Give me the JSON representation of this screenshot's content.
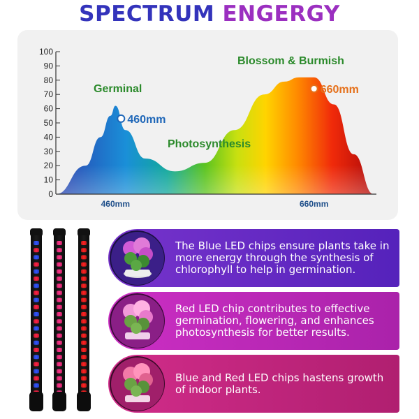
{
  "title": {
    "part1": "SPECTRUM ",
    "part2": "ENGERGY",
    "color1": "#3333bb",
    "color2": "#9b2fc0"
  },
  "chart_data": {
    "type": "area",
    "x": [
      400,
      430,
      445,
      455,
      460,
      470,
      490,
      520,
      550,
      580,
      610,
      630,
      645,
      660,
      680,
      700,
      720
    ],
    "y": [
      0,
      20,
      40,
      55,
      62,
      45,
      25,
      16,
      22,
      45,
      70,
      79,
      82,
      82,
      63,
      28,
      0
    ],
    "xlim": [
      400,
      720
    ],
    "ylim": [
      0,
      100
    ],
    "yticks": [
      0,
      10,
      20,
      30,
      40,
      50,
      60,
      70,
      80,
      90,
      100
    ],
    "xticks": [
      {
        "value": 460,
        "label": "460mm"
      },
      {
        "value": 660,
        "label": "660mm"
      }
    ],
    "annotations": [
      {
        "text": "Germinal",
        "color": "#2b8a2b"
      },
      {
        "text": "Photosynthesis",
        "color": "#2b8a2b"
      },
      {
        "text": "Blossom & Burmish",
        "color": "#2b8a2b"
      },
      {
        "text": "460mm",
        "color": "#1f67b8",
        "x": 460,
        "y": 53
      },
      {
        "text": "660mm",
        "color": "#e5701a",
        "x": 660,
        "y": 74
      }
    ],
    "grid": false
  },
  "panels": [
    {
      "text": "The Blue LED chips ensure plants take in more energy through the synthesis of chlorophyll to help in germination.",
      "color_start": "#7733cc",
      "color_end": "#5522bb"
    },
    {
      "text": "Red LED chip contributes to effective germination, flowering, and enhances photosynthesis for better results.",
      "color_start": "#cc2fc4",
      "color_end": "#aa22aa"
    },
    {
      "text": "Blue and Red LED chips hastens growth of indoor plants.",
      "color_start": "#d12c8a",
      "color_end": "#b01f70"
    }
  ],
  "tubes": [
    {
      "type": "mixed",
      "colors": [
        "#3355ff",
        "#ff2244"
      ]
    },
    {
      "type": "pink",
      "colors": [
        "#ff3388"
      ]
    },
    {
      "type": "red",
      "colors": [
        "#ff2222"
      ]
    }
  ]
}
